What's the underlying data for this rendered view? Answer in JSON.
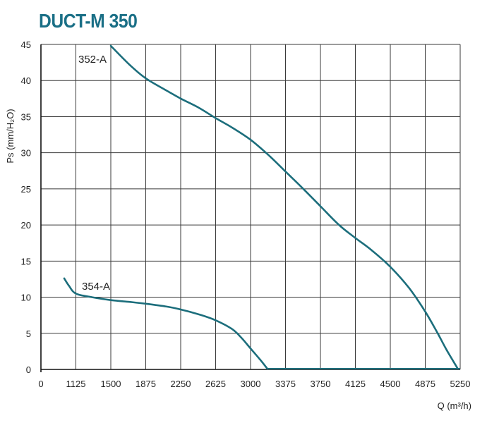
{
  "chart_data": {
    "type": "line",
    "title": "DUCT-M 350",
    "xlabel": "Q (m³/h)",
    "ylabel": "Ps (mm/H₂O)",
    "x_ticks": [
      "0",
      "1125",
      "1500",
      "1875",
      "2250",
      "2625",
      "3000",
      "3375",
      "3750",
      "4125",
      "4500",
      "4875",
      "5250"
    ],
    "y_ticks": [
      "0",
      "5",
      "10",
      "15",
      "20",
      "25",
      "30",
      "35",
      "40",
      "45"
    ],
    "ylim": [
      0,
      45
    ],
    "grid": true,
    "colors": {
      "title": "#1a6f86",
      "curve": "#1c6e7c"
    },
    "series": [
      {
        "name": "352-A",
        "points": [
          [
            1500,
            44.8
          ],
          [
            1700,
            42.2
          ],
          [
            1875,
            40.3
          ],
          [
            2100,
            38.6
          ],
          [
            2250,
            37.5
          ],
          [
            2450,
            36.2
          ],
          [
            2625,
            34.8
          ],
          [
            2800,
            33.5
          ],
          [
            3000,
            31.8
          ],
          [
            3200,
            29.6
          ],
          [
            3375,
            27.4
          ],
          [
            3550,
            25.2
          ],
          [
            3750,
            22.6
          ],
          [
            3950,
            20.0
          ],
          [
            4125,
            18.2
          ],
          [
            4300,
            16.5
          ],
          [
            4500,
            14.2
          ],
          [
            4700,
            11.3
          ],
          [
            4875,
            8.0
          ],
          [
            5000,
            5.2
          ],
          [
            5100,
            2.8
          ],
          [
            5220,
            0.2
          ]
        ]
      },
      {
        "name": "354-A",
        "points": [
          [
            750,
            12.6
          ],
          [
            900,
            11.6
          ],
          [
            1125,
            10.5
          ],
          [
            1300,
            10.0
          ],
          [
            1500,
            9.6
          ],
          [
            1700,
            9.35
          ],
          [
            1875,
            9.1
          ],
          [
            2100,
            8.7
          ],
          [
            2250,
            8.3
          ],
          [
            2450,
            7.6
          ],
          [
            2625,
            6.8
          ],
          [
            2800,
            5.6
          ],
          [
            2900,
            4.4
          ],
          [
            3000,
            2.9
          ],
          [
            3100,
            1.4
          ],
          [
            3180,
            0.1
          ]
        ]
      }
    ],
    "zero_line": [
      [
        3180,
        0
      ],
      [
        5250,
        0
      ]
    ]
  }
}
